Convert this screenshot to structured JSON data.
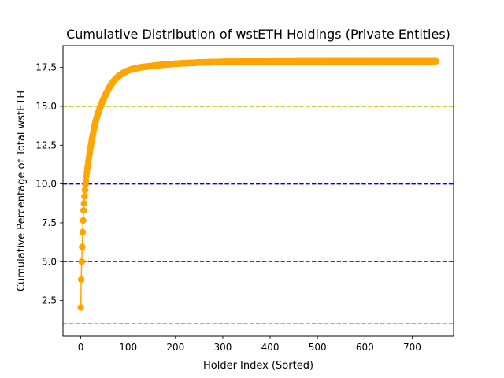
{
  "chart_data": {
    "type": "line",
    "title": "Cumulative Distribution of wstETH Holdings (Private Entities)",
    "xlabel": "Holder Index (Sorted)",
    "ylabel": "Cumulative Percentage of Total wstETH",
    "xlim": [
      -37.5,
      787.5
    ],
    "ylim": [
      0.2,
      18.9
    ],
    "x_ticks": [
      0,
      100,
      200,
      300,
      400,
      500,
      600,
      700
    ],
    "y_ticks": [
      2.5,
      5.0,
      7.5,
      10.0,
      12.5,
      15.0,
      17.5
    ],
    "y_tick_labels": [
      "2.5",
      "5.0",
      "7.5",
      "10.0",
      "12.5",
      "15.0",
      "17.5"
    ],
    "grid": false,
    "reference_lines": [
      {
        "y": 1.0,
        "color": "#d62728",
        "style": "dashed"
      },
      {
        "y": 5.0,
        "color": "#008000",
        "style": "dashed"
      },
      {
        "y": 10.0,
        "color": "#0000ff",
        "style": "dashed"
      },
      {
        "y": 15.0,
        "color": "#bfbf00",
        "style": "dashed"
      }
    ],
    "series": [
      {
        "color": "#ffa500",
        "marker": "circle",
        "count": 751,
        "points": [
          [
            0,
            2.05
          ],
          [
            1,
            3.85
          ],
          [
            2,
            5.0
          ],
          [
            3,
            5.95
          ],
          [
            4,
            6.9
          ],
          [
            5,
            7.65
          ],
          [
            6,
            8.3
          ],
          [
            7,
            8.75
          ],
          [
            8,
            9.2
          ],
          [
            9,
            9.6
          ],
          [
            10,
            9.95
          ],
          [
            11,
            10.2
          ],
          [
            12,
            10.5
          ],
          [
            13,
            10.75
          ],
          [
            14,
            11.0
          ],
          [
            15,
            11.2
          ],
          [
            16,
            11.45
          ],
          [
            17,
            11.65
          ],
          [
            18,
            11.85
          ],
          [
            19,
            12.05
          ],
          [
            20,
            12.25
          ],
          [
            22,
            12.6
          ],
          [
            24,
            12.95
          ],
          [
            26,
            13.25
          ],
          [
            28,
            13.55
          ],
          [
            30,
            13.85
          ],
          [
            33,
            14.2
          ],
          [
            36,
            14.5
          ],
          [
            40,
            14.85
          ],
          [
            45,
            15.25
          ],
          [
            50,
            15.6
          ],
          [
            55,
            15.9
          ],
          [
            60,
            16.2
          ],
          [
            65,
            16.45
          ],
          [
            70,
            16.65
          ],
          [
            80,
            16.95
          ],
          [
            90,
            17.15
          ],
          [
            100,
            17.3
          ],
          [
            110,
            17.4
          ],
          [
            125,
            17.5
          ],
          [
            150,
            17.6
          ],
          [
            175,
            17.68
          ],
          [
            200,
            17.74
          ],
          [
            250,
            17.82
          ],
          [
            300,
            17.86
          ],
          [
            400,
            17.88
          ],
          [
            500,
            17.89
          ],
          [
            600,
            17.9
          ],
          [
            700,
            17.9
          ],
          [
            750,
            17.9
          ]
        ]
      }
    ]
  }
}
